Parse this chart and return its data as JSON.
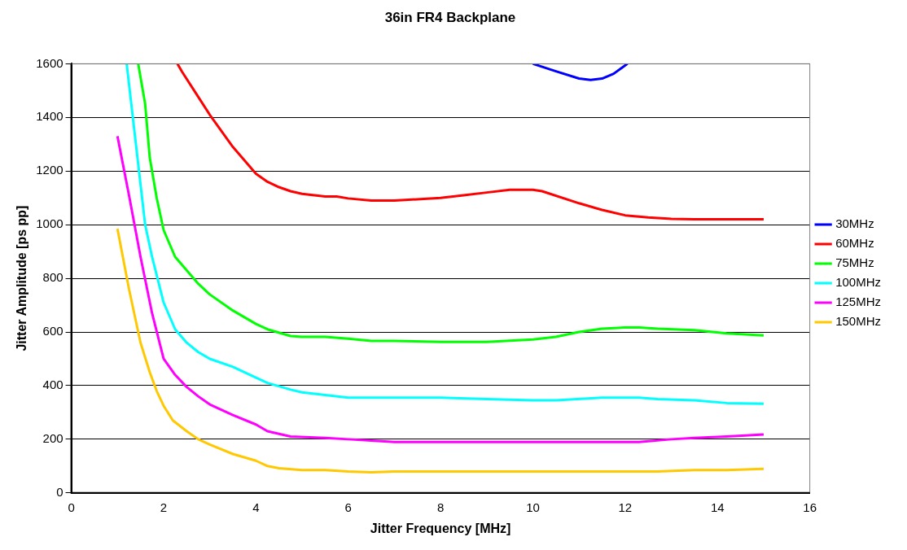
{
  "chart_data": {
    "type": "line",
    "title": "36in FR4 Backplane",
    "xlabel": "Jitter Frequency [MHz]",
    "ylabel": "Jitter Amplitude [ps pp]",
    "xlim": [
      0,
      16
    ],
    "xticks": [
      0,
      2,
      4,
      6,
      8,
      10,
      12,
      14,
      16
    ],
    "ylim": [
      0,
      1600
    ],
    "yticks": [
      0,
      200,
      400,
      600,
      800,
      1000,
      1200,
      1400,
      1600
    ],
    "grid": "y",
    "legend": "right",
    "marker": "none",
    "line_style": "solid",
    "series": [
      {
        "name": "30MHz",
        "color": "#0000ff",
        "x": [
          10,
          10.5,
          11,
          11.25,
          11.5,
          11.75,
          12.05
        ],
        "values": [
          1600,
          1572,
          1545,
          1540,
          1545,
          1563,
          1600
        ]
      },
      {
        "name": "60MHz",
        "color": "#ff0000",
        "x": [
          2.3,
          2.4,
          2.7,
          3,
          3.5,
          3.75,
          4,
          4.25,
          4.5,
          4.75,
          5,
          5.5,
          5.75,
          6,
          6.5,
          7,
          8,
          8.5,
          9,
          9.5,
          10,
          10.2,
          11,
          11.5,
          12,
          12.5,
          13,
          13.5,
          14.5,
          15
        ],
        "values": [
          1600,
          1570,
          1490,
          1410,
          1290,
          1240,
          1190,
          1160,
          1140,
          1125,
          1115,
          1105,
          1105,
          1098,
          1090,
          1090,
          1100,
          1110,
          1120,
          1130,
          1130,
          1125,
          1080,
          1055,
          1035,
          1027,
          1022,
          1020,
          1020,
          1020
        ]
      },
      {
        "name": "75MHz",
        "color": "#00ff00",
        "x": [
          1.45,
          1.6,
          1.7,
          1.85,
          2,
          2.25,
          2.5,
          2.75,
          3,
          3.5,
          3.75,
          4,
          4.25,
          4.75,
          5,
          5.5,
          6,
          6.5,
          7,
          8,
          9,
          10,
          10.5,
          11,
          11.5,
          12,
          12.3,
          12.7,
          13.5,
          14.2,
          15
        ],
        "values": [
          1600,
          1450,
          1250,
          1100,
          980,
          880,
          830,
          780,
          740,
          680,
          655,
          630,
          610,
          585,
          582,
          582,
          575,
          567,
          567,
          563,
          563,
          572,
          582,
          600,
          612,
          617,
          617,
          612,
          607,
          595,
          587
        ]
      },
      {
        "name": "100MHz",
        "color": "#00ffff",
        "x": [
          1.2,
          1.4,
          1.6,
          1.75,
          2,
          2.25,
          2.5,
          2.75,
          3,
          3.5,
          4,
          4.25,
          4.75,
          5,
          5.5,
          6,
          6.5,
          7,
          8,
          9,
          10,
          10.5,
          11.5,
          12.3,
          12.7,
          13.5,
          14.2,
          15
        ],
        "values": [
          1600,
          1300,
          1000,
          880,
          710,
          610,
          560,
          525,
          500,
          470,
          430,
          410,
          385,
          375,
          365,
          355,
          355,
          355,
          355,
          350,
          345,
          345,
          355,
          355,
          350,
          345,
          335,
          332
        ]
      },
      {
        "name": "125MHz",
        "color": "#ff00ff",
        "x": [
          1,
          1.25,
          1.5,
          1.75,
          2,
          2.25,
          2.5,
          2.75,
          3,
          3.5,
          4,
          4.25,
          4.75,
          5.5,
          6,
          6.5,
          7,
          8,
          9,
          10,
          11,
          12,
          12.3,
          13,
          13.5,
          14.2,
          15
        ],
        "values": [
          1330,
          1110,
          880,
          670,
          500,
          440,
          395,
          360,
          330,
          290,
          255,
          230,
          210,
          205,
          200,
          195,
          190,
          190,
          190,
          190,
          190,
          190,
          190,
          200,
          205,
          210,
          218
        ]
      },
      {
        "name": "150MHz",
        "color": "#ffc800",
        "x": [
          1,
          1.25,
          1.5,
          1.7,
          1.85,
          2,
          2.2,
          2.5,
          2.75,
          3,
          3.5,
          4,
          4.25,
          4.5,
          5,
          5.5,
          6,
          6.5,
          7,
          8,
          9,
          10,
          11,
          12,
          12.7,
          13.5,
          14.2,
          15
        ],
        "values": [
          985,
          760,
          560,
          450,
          380,
          325,
          270,
          230,
          200,
          180,
          145,
          120,
          100,
          92,
          85,
          85,
          80,
          77,
          80,
          80,
          80,
          80,
          80,
          80,
          80,
          85,
          85,
          90
        ]
      }
    ]
  }
}
